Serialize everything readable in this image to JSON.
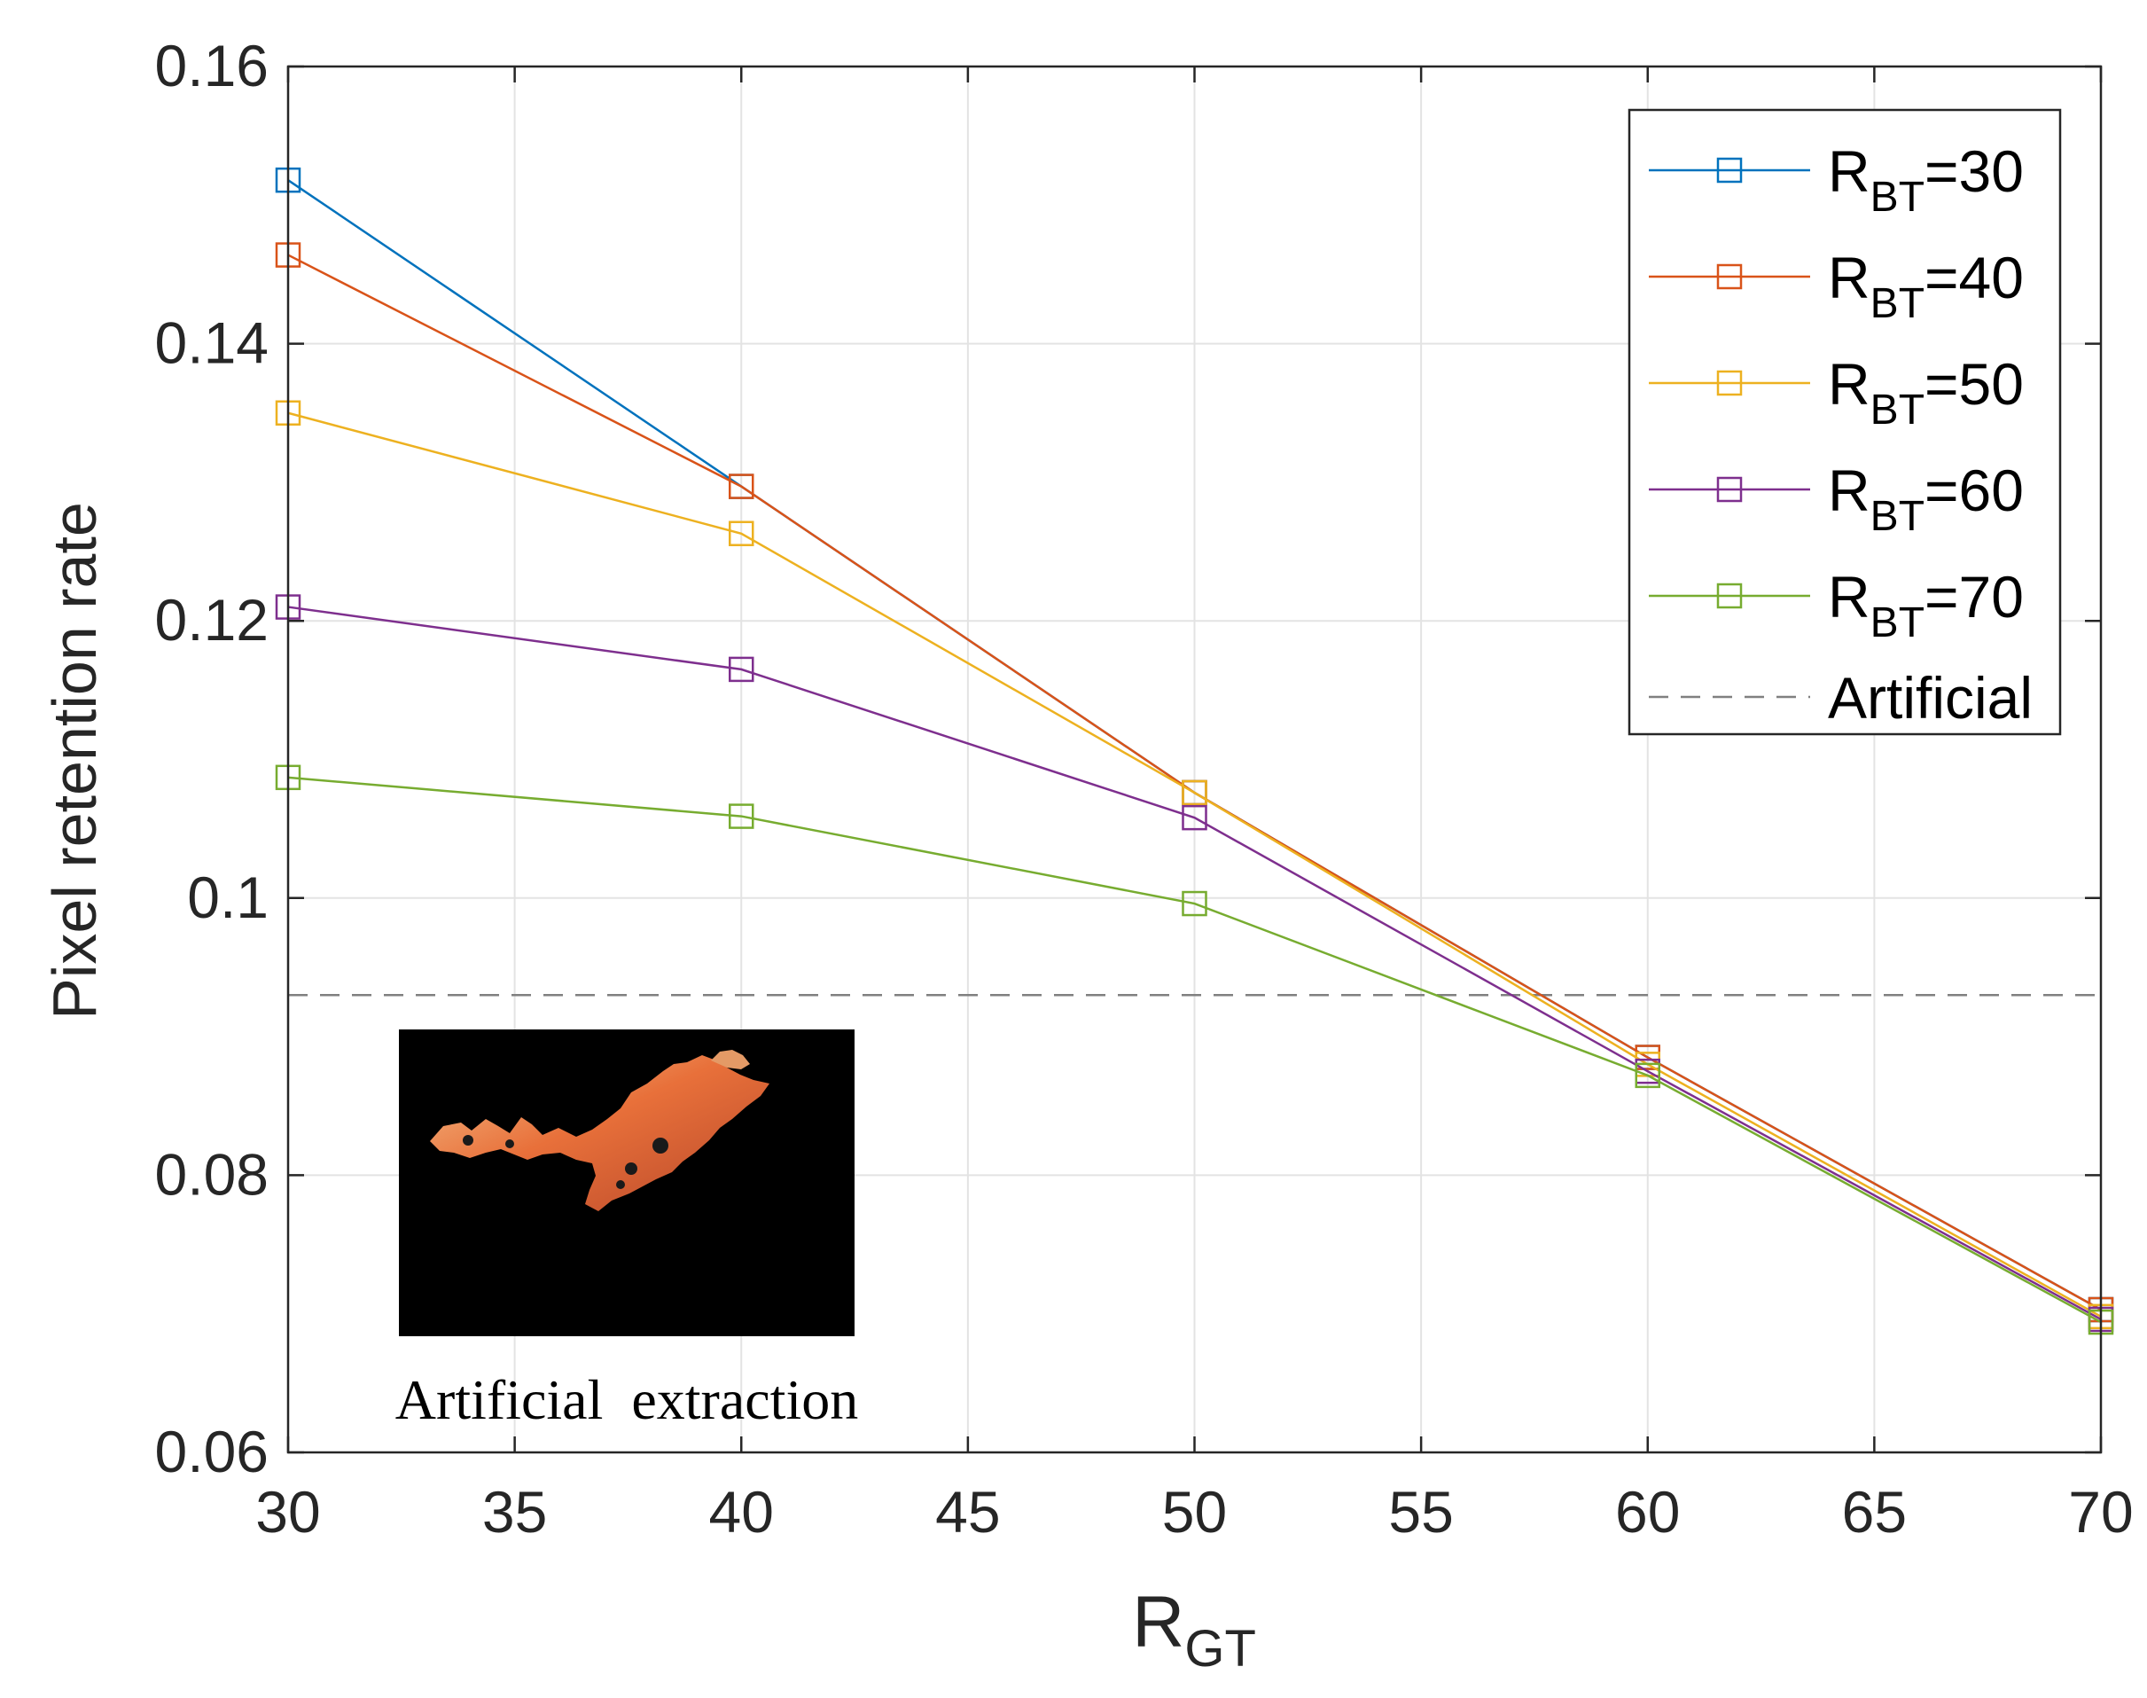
{
  "chart_data": {
    "type": "line",
    "title": "",
    "xlabel": "R",
    "xlabel_sub": "GT",
    "ylabel": "Pixel retention rate",
    "xlim": [
      30,
      70
    ],
    "ylim": [
      0.06,
      0.16
    ],
    "xticks": [
      30,
      35,
      40,
      45,
      50,
      55,
      60,
      65,
      70
    ],
    "xtick_labels": [
      "30",
      "35",
      "40",
      "45",
      "50",
      "55",
      "60",
      "65",
      "70"
    ],
    "yticks": [
      0.06,
      0.08,
      0.1,
      0.12,
      0.14,
      0.16
    ],
    "ytick_labels": [
      "0.06",
      "0.08",
      "0.1",
      "0.12",
      "0.14",
      "0.16"
    ],
    "grid": true,
    "legend_position": "top-right",
    "x": [
      30,
      40,
      50,
      60,
      70
    ],
    "series": [
      {
        "name": "=30",
        "name_base": "R",
        "name_sub": "BT",
        "color": "#0072BD",
        "marker": "square",
        "values": [
          0.1518,
          0.1297,
          0.1076,
          0.0885,
          0.0703
        ]
      },
      {
        "name": "=40",
        "name_base": "R",
        "name_sub": "BT",
        "color": "#D95319",
        "marker": "square",
        "values": [
          0.1464,
          0.1297,
          0.1076,
          0.0885,
          0.0703
        ]
      },
      {
        "name": "=50",
        "name_base": "R",
        "name_sub": "BT",
        "color": "#EDB120",
        "marker": "square",
        "values": [
          0.135,
          0.1263,
          0.1076,
          0.088,
          0.0698
        ]
      },
      {
        "name": "=60",
        "name_base": "R",
        "name_sub": "BT",
        "color": "#7E2F8E",
        "marker": "square",
        "values": [
          0.121,
          0.1165,
          0.1058,
          0.0875,
          0.0696
        ]
      },
      {
        "name": "=70",
        "name_base": "R",
        "name_sub": "BT",
        "color": "#77AC30",
        "marker": "square",
        "values": [
          0.1087,
          0.1059,
          0.0996,
          0.0872,
          0.0694
        ]
      }
    ],
    "reference_lines": [
      {
        "name": "Artificial",
        "orientation": "horizontal",
        "y": 0.093,
        "color": "#808080",
        "style": "dashed"
      }
    ],
    "inset": {
      "caption": "Artificial  extraction",
      "image_description": "image-icon"
    }
  }
}
